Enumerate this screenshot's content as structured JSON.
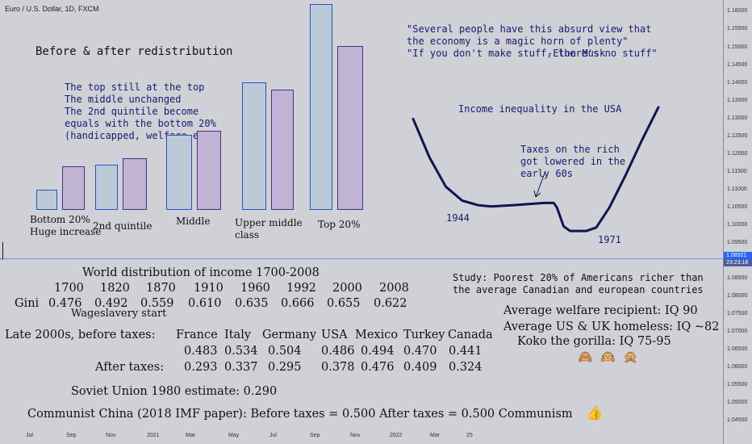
{
  "symbol": "Euro / U.S. Dollar, 1D, FXCM",
  "price_axis": {
    "ticks": [
      "1.16000",
      "1.15500",
      "1.15000",
      "1.14500",
      "1.14000",
      "1.13500",
      "1.13000",
      "1.12500",
      "1.12000",
      "1.11500",
      "1.11000",
      "1.10500",
      "1.10000",
      "1.09500",
      "1.08500",
      "1.08000",
      "1.07500",
      "1.07000",
      "1.06500",
      "1.06000",
      "1.05500",
      "1.05000",
      "1.04500"
    ],
    "current_price": "1.08921",
    "countdown": "23:23:18",
    "price_color": "#2962ff",
    "countdown_color": "#4d5b9e"
  },
  "time_axis": [
    "Jul",
    "Sep",
    "Nov",
    "2021",
    "Mar",
    "May",
    "Jul",
    "Sep",
    "Nov",
    "2022",
    "Mar",
    "25"
  ],
  "redistribution": {
    "title": "Before & after redistribution",
    "note": [
      "The top still at the top",
      "The middle unchanged",
      "The 2nd quintile become",
      "equals with the bottom 20%",
      "(handicapped, welfare etc)"
    ],
    "before_color": "#2a4fc9",
    "after_color": "#4a2c8a"
  },
  "chart_data": [
    {
      "type": "bar",
      "categories": [
        "Bottom 20%",
        "2nd quintile",
        "Middle",
        "Upper middle class",
        "Top 20%"
      ],
      "series": [
        {
          "values": [
            0.6,
            1.35,
            2.25,
            3.8,
            6.15
          ]
        },
        {
          "values": [
            1.3,
            1.55,
            2.35,
            3.6,
            4.9
          ]
        }
      ],
      "category_labels": [
        [
          "Bottom 20%",
          "Huge increase"
        ],
        [
          "2nd quintile"
        ],
        [
          "Middle"
        ],
        [
          "Upper middle",
          "class"
        ],
        [
          "Top 20%"
        ]
      ],
      "ylim": [
        0,
        6.5
      ]
    },
    {
      "type": "line",
      "title": "Income inequality in the USA",
      "x": [
        1920,
        1925,
        1930,
        1935,
        1940,
        1944,
        1950,
        1955,
        1960,
        1963,
        1964,
        1966,
        1968,
        1970,
        1971,
        1973,
        1976,
        1980,
        1985,
        1990,
        1995
      ],
      "y": [
        12.8,
        9.5,
        7.0,
        5.8,
        5.4,
        5.3,
        5.4,
        5.5,
        5.6,
        5.6,
        5.2,
        3.6,
        3.2,
        3.2,
        3.2,
        3.2,
        3.5,
        5.2,
        8.0,
        11.0,
        13.8
      ],
      "annotations": [
        "1944",
        "1971"
      ],
      "callout": [
        "Taxes on the rich",
        "got lowered in the",
        "early 60s"
      ]
    }
  ],
  "quote": {
    "lines": [
      "\"Several people have this absurd view that",
      "the economy is a magic horn of plenty\"",
      "\"If you don't make stuff, there's no stuff\""
    ],
    "author": "-Elon Musk"
  },
  "study": [
    "Study: Poorest 20% of Americans richer than",
    "the average Canadian and european countries"
  ],
  "world_gini": {
    "title": "World distribution of income 1700-2008",
    "years": [
      "1700",
      "1820",
      "1870",
      "1910",
      "1960",
      "1992",
      "2000",
      "2008"
    ],
    "label": "Gini",
    "values": [
      "0.476",
      "0.492",
      "0.559",
      "0.610",
      "0.635",
      "0.666",
      "0.655",
      "0.622"
    ],
    "footnote": "Wageslavery start"
  },
  "iq": {
    "lines": [
      "Average welfare recipient: IQ 90",
      "Average US & UK homeless: IQ ~82",
      "Koko the gorilla: IQ 75-95"
    ],
    "emojis": [
      "🙈",
      "🙉",
      "🙊"
    ]
  },
  "late2000s": {
    "label": "Late 2000s, before taxes:",
    "countries": [
      "France",
      "Italy",
      "Germany",
      "USA",
      "Mexico",
      "Turkey",
      "Canada"
    ],
    "before": [
      "0.483",
      "0.534",
      "0.504",
      "0.486",
      "0.494",
      "0.470",
      "0.441"
    ],
    "after_label": "After taxes:",
    "after": [
      "0.293",
      "0.337",
      "0.295",
      "0.378",
      "0.476",
      "0.409",
      "0.324"
    ]
  },
  "soviet": "Soviet Union 1980 estimate: 0.290",
  "china": "Communist China (2018 IMF paper): Before taxes = 0.500 After taxes = 0.500 Communism",
  "thumb": "👍"
}
